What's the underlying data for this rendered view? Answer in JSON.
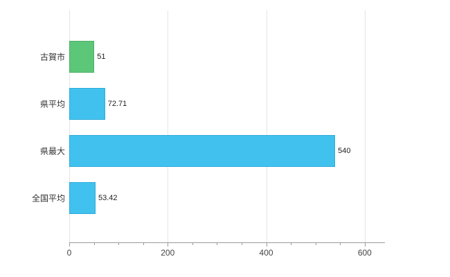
{
  "chart_data": {
    "type": "bar",
    "orientation": "horizontal",
    "title": "",
    "categories": [
      "古賀市",
      "県平均",
      "県最大",
      "全国平均"
    ],
    "values": [
      51,
      72.71,
      540,
      53.42
    ],
    "value_labels": [
      "51",
      "72.71",
      "540",
      "53.42"
    ],
    "bar_colors": [
      "#5cc778",
      "#41c2ee",
      "#41c2ee",
      "#41c2ee"
    ],
    "bar_border_colors": [
      "#4bb066",
      "#2fabd8",
      "#2fabd8",
      "#2fabd8"
    ],
    "xlim": [
      0,
      641
    ],
    "x_ticks": [
      0,
      200,
      400,
      600
    ],
    "x_tick_labels": [
      "0",
      "200",
      "400",
      "600"
    ],
    "minor_tick_step": 50,
    "grid": true,
    "legend": "none",
    "colors": {
      "gridline": "#e4e4e4",
      "axis": "#9a9a9a",
      "category_text": "#333333",
      "value_text": "#222222",
      "tick_text": "#444444",
      "background": "#ffffff"
    }
  }
}
